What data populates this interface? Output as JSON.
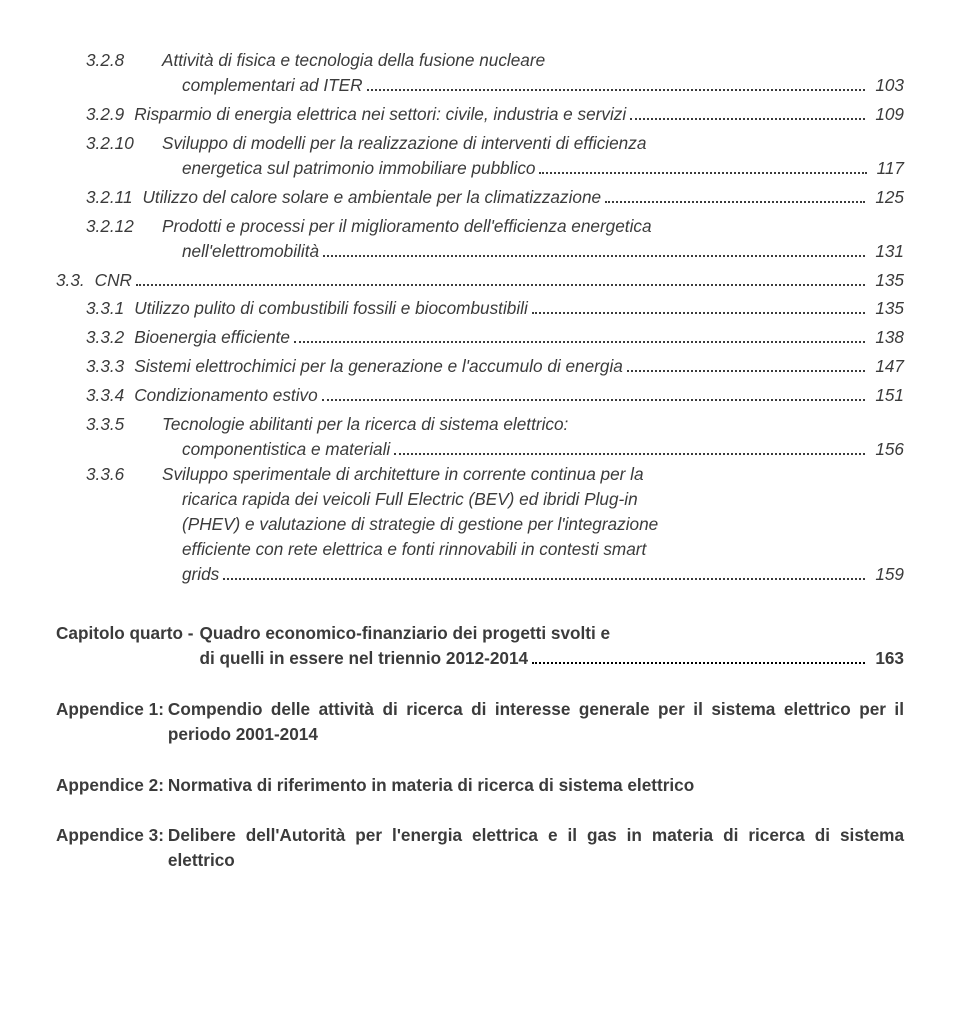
{
  "toc_sub": [
    {
      "num": "3.2.8",
      "text_a": "Attività di fisica e tecnologia della fusione nucleare",
      "text_b": "complementari ad ITER",
      "page": "103",
      "indent": "indent-1"
    },
    {
      "num": "3.2.9",
      "text": "Risparmio di energia elettrica nei settori: civile, industria e servizi",
      "page": "109",
      "indent": "indent-1"
    },
    {
      "num": "3.2.10",
      "text_a": "Sviluppo di modelli per la realizzazione di interventi di efficienza",
      "text_b": "energetica sul patrimonio immobiliare pubblico",
      "page": "117",
      "indent": "indent-1"
    },
    {
      "num": "3.2.11",
      "text": "Utilizzo del calore solare e ambientale per la climatizzazione",
      "page": "125",
      "indent": "indent-1"
    },
    {
      "num": "3.2.12",
      "text_a": "Prodotti e processi per il miglioramento dell'efficienza energetica",
      "text_b": "nell'elettromobilità",
      "page": "131",
      "indent": "indent-1"
    }
  ],
  "cnr": {
    "num": "3.3.",
    "text": "CNR",
    "page": "135"
  },
  "toc_cnr": [
    {
      "num": "3.3.1",
      "text": "Utilizzo pulito di combustibili fossili e biocombustibili",
      "page": "135",
      "indent": "indent-1"
    },
    {
      "num": "3.3.2",
      "text": "Bioenergia efficiente",
      "page": "138",
      "indent": "indent-1"
    },
    {
      "num": "3.3.3",
      "text": "Sistemi elettrochimici per la generazione e l'accumulo di energia",
      "page": "147",
      "indent": "indent-1"
    },
    {
      "num": "3.3.4",
      "text": "Condizionamento estivo",
      "page": "151",
      "indent": "indent-1"
    },
    {
      "num": "3.3.5",
      "text_a": "Tecnologie abilitanti per la ricerca di sistema elettrico:",
      "text_b": "componentistica e materiali",
      "page": "156",
      "indent": "indent-1"
    },
    {
      "num": "3.3.6",
      "text_lines": [
        "Sviluppo sperimentale di architetture in corrente continua per la",
        "ricarica rapida dei veicoli Full Electric (BEV) ed ibridi Plug-in",
        "(PHEV) e valutazione di strategie di gestione per l'integrazione",
        "efficiente con rete elettrica e fonti rinnovabili in contesti smart"
      ],
      "text_b": "grids",
      "page": "159",
      "indent": "indent-1"
    }
  ],
  "chapter": {
    "label": "Capitolo quarto -",
    "line1": "Quadro economico-finanziario dei progetti svolti e",
    "line2": "di quelli in essere nel triennio 2012-2014",
    "page": "163"
  },
  "appendices": [
    {
      "label": "Appendice 1:",
      "text": "Compendio delle attività di ricerca di interesse generale per il sistema elettrico per il periodo 2001-2014"
    },
    {
      "label": "Appendice 2:",
      "text": "Normativa di riferimento in materia di ricerca di sistema elettrico"
    },
    {
      "label": "Appendice 3:",
      "text": "Delibere dell'Autorità per l'energia elettrica e il gas in materia di ricerca di sistema elettrico"
    }
  ]
}
